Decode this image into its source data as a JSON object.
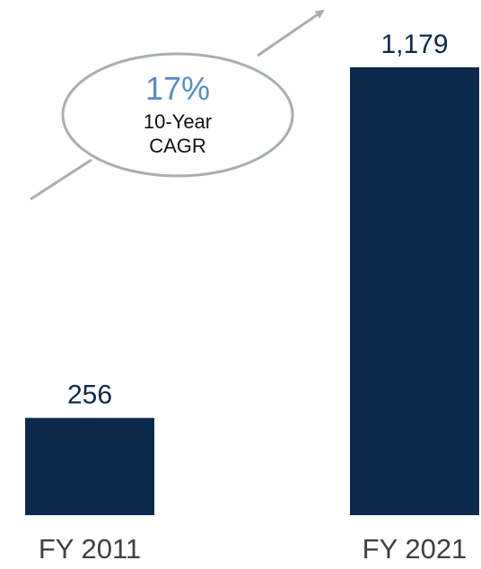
{
  "chart_data": {
    "type": "bar",
    "categories": [
      "FY 2011",
      "FY 2021"
    ],
    "values": [
      256,
      1179
    ],
    "value_labels": [
      "256",
      "1,179"
    ],
    "title": "",
    "xlabel": "",
    "ylabel": "",
    "ylim": [
      0,
      1179
    ],
    "grid": false,
    "legend": "none",
    "bar_color": "#0b2a4a",
    "annotation": {
      "value": "17%",
      "line1": "10-Year",
      "line2": "CAGR",
      "value_color": "#5b8bc2",
      "arrow_color": "#a6aeb6"
    }
  }
}
